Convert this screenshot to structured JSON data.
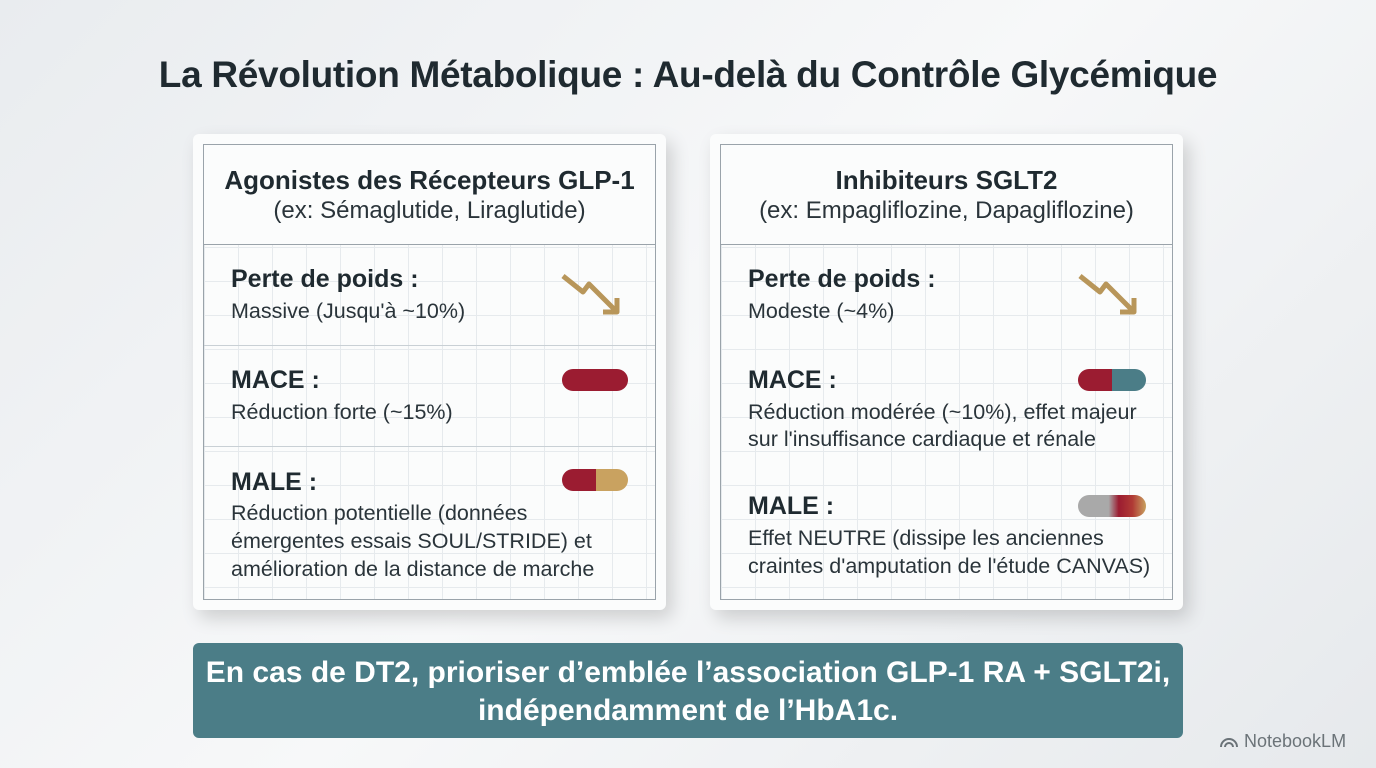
{
  "header": {
    "title": "La Révolution Métabolique : Au-delà du Contrôle Glycémique"
  },
  "cards": [
    {
      "title": "Agonistes des Récepteurs GLP-1",
      "subtitle": "(ex: Sémaglutide, Liraglutide)",
      "rows": [
        {
          "label": "Perte de poids :",
          "lines": [
            "Massive (Jusqu'à ~10%)"
          ]
        },
        {
          "label": "MACE :",
          "lines": [
            "Réduction forte (~15%)"
          ]
        },
        {
          "label": "MALE :",
          "lines": [
            "Réduction potentielle (données",
            "émergentes essais SOUL/STRIDE) et",
            "amélioration de la distance de marche"
          ]
        }
      ]
    },
    {
      "title": "Inhibiteurs SGLT2",
      "subtitle": "(ex: Empagliflozine, Dapagliflozine)",
      "rows": [
        {
          "label": "Perte de poids :",
          "lines": [
            "Modeste (~4%)"
          ]
        },
        {
          "label": "MACE :",
          "lines": [
            "Réduction modérée (~10%), effet majeur",
            "sur l'insuffisance cardiaque et rénale"
          ]
        },
        {
          "label": "MALE :",
          "lines": [
            "Effet NEUTRE (dissipe les anciennes",
            "craintes d'amputation de l'étude CANVAS)"
          ]
        }
      ]
    }
  ],
  "banner": {
    "lines": [
      "En cas de DT2, prioriser d’emblée l’association GLP-1 RA + SGLT2i,",
      "indépendamment de l’HbA1c."
    ]
  },
  "footer": {
    "watermark": "NotebookLM"
  }
}
